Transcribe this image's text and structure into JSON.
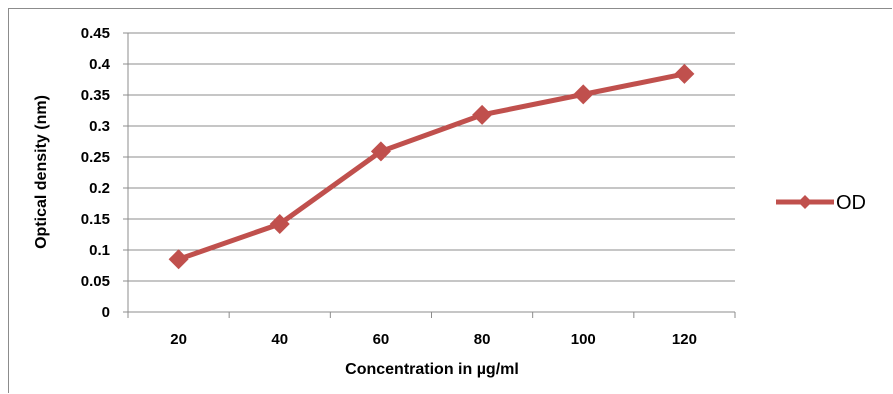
{
  "chart_data": {
    "type": "line",
    "categories": [
      "20",
      "40",
      "60",
      "80",
      "100",
      "120"
    ],
    "x": [
      20,
      40,
      60,
      80,
      100,
      120
    ],
    "series": [
      {
        "name": "OD",
        "values": [
          0.085,
          0.142,
          0.259,
          0.318,
          0.351,
          0.384
        ],
        "color": "#c0504d",
        "marker": "diamond"
      }
    ],
    "title": "",
    "xlabel": "Concentration in µg/ml",
    "ylabel": "Optical density (nm)",
    "ylim": [
      0,
      0.45
    ],
    "yticks": [
      0,
      0.05,
      0.1,
      0.15,
      0.2,
      0.25,
      0.3,
      0.35,
      0.4,
      0.45
    ],
    "ytick_labels": [
      "0",
      "0.05",
      "0.1",
      "0.15",
      "0.2",
      "0.25",
      "0.3",
      "0.35",
      "0.4",
      "0.45"
    ],
    "grid": true,
    "legend_position": "right"
  }
}
